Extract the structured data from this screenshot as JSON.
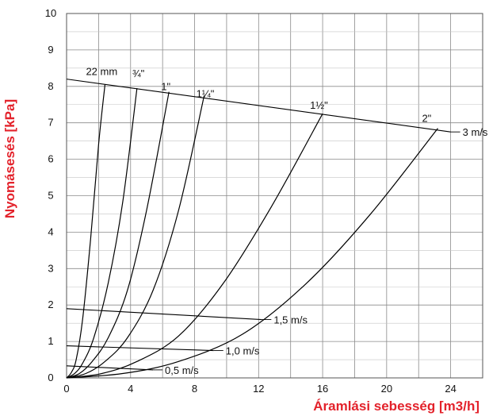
{
  "chart_data": {
    "type": "line",
    "xlabel": "Áramlási sebesség [m3/h]",
    "ylabel": "Nyomásesés [kPa]",
    "xlim": [
      0,
      26
    ],
    "ylim": [
      0,
      10
    ],
    "xticks": [
      0,
      4,
      8,
      12,
      16,
      20,
      24
    ],
    "yticks": [
      0,
      1,
      2,
      3,
      4,
      5,
      6,
      7,
      8,
      9,
      10
    ],
    "grid": true,
    "series": [
      {
        "name": "22 mm",
        "points": [
          [
            0,
            0
          ],
          [
            0.3,
            0.15
          ],
          [
            0.6,
            0.5
          ],
          [
            1.0,
            1.6
          ],
          [
            1.5,
            3.8
          ],
          [
            2.0,
            6.4
          ],
          [
            2.4,
            8.05
          ]
        ]
      },
      {
        "name": "¾\"",
        "points": [
          [
            0,
            0
          ],
          [
            0.5,
            0.12
          ],
          [
            1.0,
            0.4
          ],
          [
            1.7,
            1.1
          ],
          [
            2.6,
            2.6
          ],
          [
            3.5,
            4.8
          ],
          [
            4.4,
            7.95
          ]
        ]
      },
      {
        "name": "1\"",
        "points": [
          [
            0,
            0
          ],
          [
            0.8,
            0.12
          ],
          [
            1.6,
            0.45
          ],
          [
            2.6,
            1.1
          ],
          [
            3.8,
            2.4
          ],
          [
            5.0,
            4.6
          ],
          [
            6.4,
            7.85
          ]
        ]
      },
      {
        "name": "1¼\"",
        "points": [
          [
            0,
            0
          ],
          [
            1.2,
            0.12
          ],
          [
            2.4,
            0.45
          ],
          [
            3.8,
            1.1
          ],
          [
            5.4,
            2.4
          ],
          [
            7.0,
            4.6
          ],
          [
            8.6,
            7.75
          ]
        ]
      },
      {
        "name": "1½\"",
        "points": [
          [
            0,
            0
          ],
          [
            2.2,
            0.12
          ],
          [
            4.4,
            0.45
          ],
          [
            7.0,
            1.15
          ],
          [
            9.8,
            2.6
          ],
          [
            12.8,
            4.7
          ],
          [
            16.0,
            7.25
          ]
        ]
      },
      {
        "name": "2\"",
        "points": [
          [
            0,
            0
          ],
          [
            3.5,
            0.12
          ],
          [
            7.0,
            0.45
          ],
          [
            11.0,
            1.2
          ],
          [
            15.0,
            2.6
          ],
          [
            19.0,
            4.5
          ],
          [
            23.2,
            6.85
          ]
        ]
      }
    ],
    "velocity_lines": [
      {
        "label": "3 m/s",
        "points": [
          [
            0,
            8.2
          ],
          [
            24.0,
            6.75
          ]
        ]
      },
      {
        "label": "1,5 m/s",
        "points": [
          [
            0,
            1.9
          ],
          [
            12.2,
            1.6
          ]
        ]
      },
      {
        "label": "1,0 m/s",
        "points": [
          [
            0,
            0.88
          ],
          [
            9.2,
            0.75
          ]
        ]
      },
      {
        "label": "0,5 m/s",
        "points": [
          [
            0,
            0.33
          ],
          [
            5.4,
            0.22
          ]
        ]
      }
    ]
  }
}
